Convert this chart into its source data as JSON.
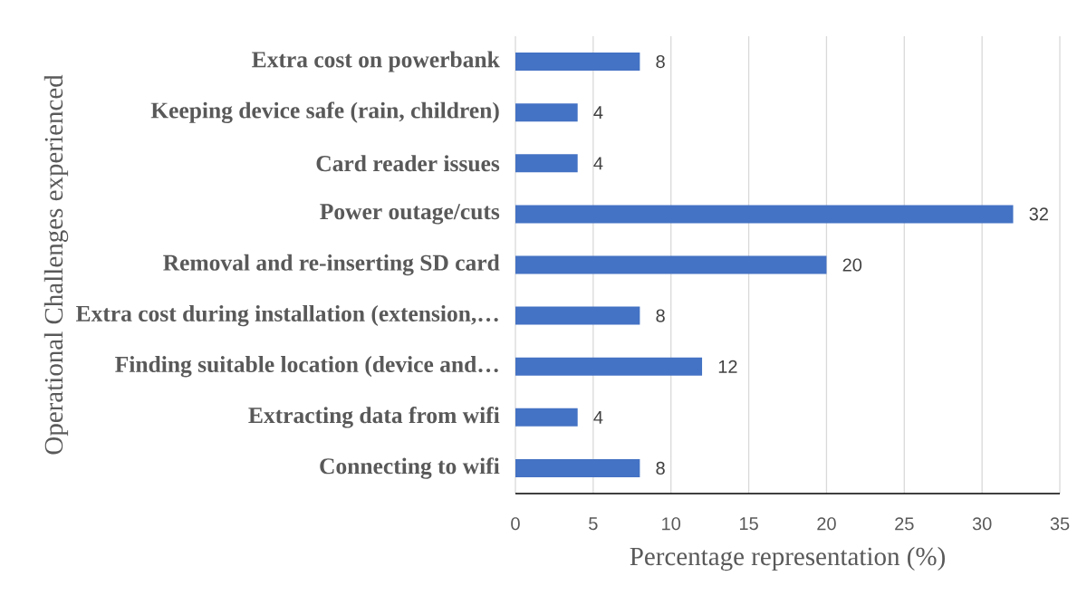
{
  "chart_data": {
    "type": "bar",
    "orientation": "horizontal",
    "xlabel": "Percentage representation (%)",
    "ylabel": "Operational Challenges experienced",
    "categories": [
      "Extra cost on powerbank",
      "Keeping device safe (rain, children)",
      "Card reader issues",
      "Power outage/cuts",
      "Removal and re-inserting SD card",
      "Extra cost during installation (extension,…",
      "Finding suitable location (device and…",
      "Extracting data from wifi",
      "Connecting to wifi"
    ],
    "values": [
      8,
      4,
      4,
      32,
      20,
      8,
      12,
      4,
      8
    ],
    "color": "#4472c4",
    "xlim": [
      0,
      35
    ],
    "xticks": [
      0,
      5,
      10,
      15,
      20,
      25,
      30,
      35
    ],
    "grid": "x",
    "data_labels": true
  }
}
